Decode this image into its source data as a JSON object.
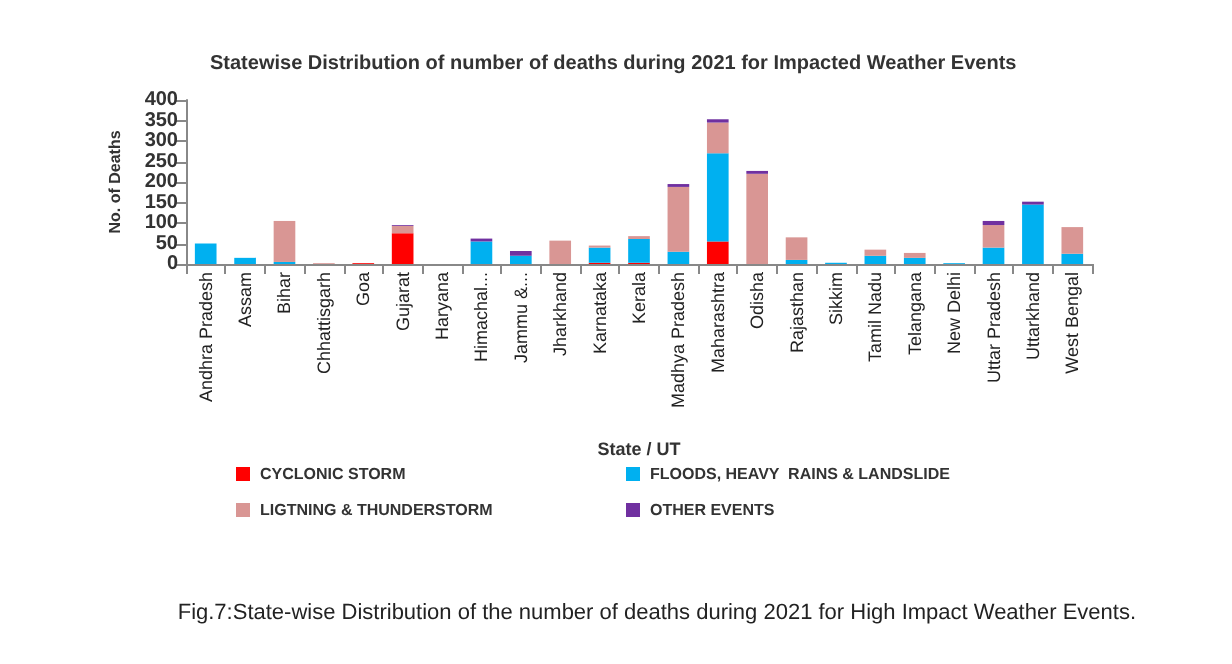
{
  "chart_data": {
    "type": "bar",
    "stacked": true,
    "title": "Statewise Distribution of number of deaths during 2021 for Impacted Weather Events",
    "xlabel": "State / UT",
    "ylabel": "No. of Deaths",
    "categories": [
      "Andhra Pradesh",
      "Assam",
      "Bihar",
      "Chhattisgarh",
      "Goa",
      "Gujarat",
      "Haryana",
      "Himachal...",
      "Jammu &...",
      "Jharkhand",
      "Karnataka",
      "Kerala",
      "Madhya Pradesh",
      "Maharashtra",
      "Odisha",
      "Rajasthan",
      "Sikkim",
      "Tamil Nadu",
      "Telangana",
      "New Delhi",
      "Uttar Pradesh",
      "Uttarkhand",
      "West Bengal"
    ],
    "series": [
      {
        "name": "CYCLONIC STORM",
        "color": "#ff0000",
        "values": [
          0,
          0,
          0,
          0,
          2,
          75,
          0,
          0,
          0,
          0,
          3,
          3,
          0,
          55,
          0,
          0,
          0,
          0,
          0,
          0,
          0,
          0,
          0
        ]
      },
      {
        "name": "FLOODS, HEAVY  RAINS & LANDSLIDE",
        "color": "#00b0f0",
        "values": [
          50,
          15,
          5,
          0,
          0,
          0,
          0,
          55,
          20,
          0,
          37,
          58,
          30,
          215,
          0,
          10,
          3,
          20,
          15,
          2,
          40,
          145,
          25
        ]
      },
      {
        "name": "LIGTNING & THUNDERSTORM",
        "color": "#d99694",
        "values": [
          0,
          0,
          100,
          2,
          0,
          18,
          0,
          0,
          0,
          57,
          5,
          7,
          158,
          75,
          220,
          55,
          0,
          15,
          12,
          0,
          55,
          0,
          65
        ]
      },
      {
        "name": "OTHER EVENTS",
        "color": "#7030a0",
        "values": [
          0,
          0,
          0,
          0,
          0,
          2,
          0,
          7,
          12,
          0,
          0,
          0,
          7,
          8,
          7,
          0,
          0,
          0,
          0,
          0,
          10,
          7,
          0
        ]
      }
    ],
    "ylim": [
      0,
      400
    ],
    "yticks": [
      0,
      50,
      100,
      150,
      200,
      250,
      300,
      350,
      400
    ],
    "legend": "bottom",
    "annotations": [
      "Fig.7:State-wise Distribution of the number of deaths during 2021 for High Impact Weather Events."
    ]
  }
}
